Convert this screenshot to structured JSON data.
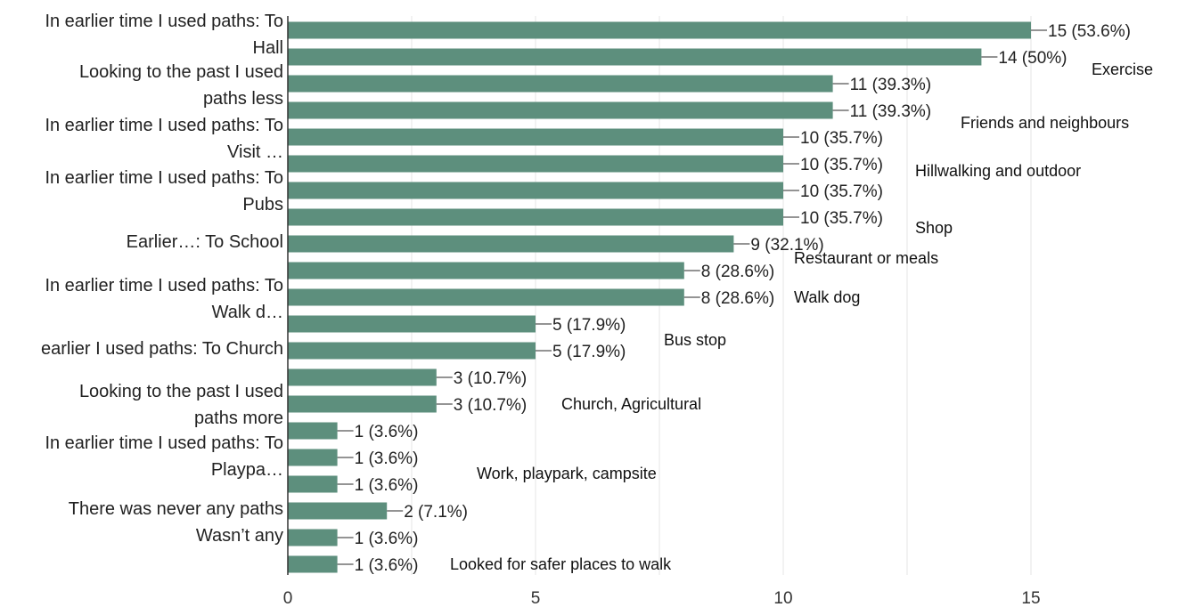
{
  "chart_data": {
    "type": "bar",
    "orientation": "horizontal",
    "bar_color": "#5d8f7d",
    "grid": true,
    "xlim": [
      0,
      15
    ],
    "x_ticks": [
      0,
      5,
      10,
      15
    ],
    "category_labels": [
      [
        "In earlier time I used paths: To",
        "Hall"
      ],
      [
        "Looking to the past I used",
        "paths less"
      ],
      [
        "In earlier time I used paths: To",
        "Visit …"
      ],
      [
        "In earlier time I used paths: To",
        "Pubs"
      ],
      [
        "Earlier…: To School"
      ],
      [
        "In earlier time I used paths: To",
        "Walk d…"
      ],
      [
        "earlier I used paths: To Church"
      ],
      [
        "Looking to the past I used",
        "paths more"
      ],
      [
        "In earlier time I used paths: To",
        "Playpa…"
      ],
      [
        "There was never any paths"
      ],
      [
        "Wasn’t any"
      ]
    ],
    "bars": [
      {
        "value": 15,
        "label": "15 (53.6%)",
        "annotation": ""
      },
      {
        "value": 14,
        "label": "14 (50%)",
        "annotation": "Exercise"
      },
      {
        "value": 11,
        "label": "11 (39.3%)",
        "annotation": ""
      },
      {
        "value": 11,
        "label": "11 (39.3%)",
        "annotation": "Friends and neighbours"
      },
      {
        "value": 10,
        "label": "10 (35.7%)",
        "annotation": ""
      },
      {
        "value": 10,
        "label": "10 (35.7%)",
        "annotation": "Hillwalking and outdoor"
      },
      {
        "value": 10,
        "label": "10 (35.7%)",
        "annotation": ""
      },
      {
        "value": 10,
        "label": "10 (35.7%)",
        "annotation": "Shop"
      },
      {
        "value": 9,
        "label": "9 (32.1%)",
        "annotation": ""
      },
      {
        "value": 8,
        "label": "8 (28.6%)",
        "annotation": "Restaurant or meals"
      },
      {
        "value": 8,
        "label": "8 (28.6%)",
        "annotation": "Walk dog"
      },
      {
        "value": 5,
        "label": "5 (17.9%)",
        "annotation": "Bus stop"
      },
      {
        "value": 5,
        "label": "5 (17.9%)",
        "annotation": ""
      },
      {
        "value": 3,
        "label": "3 (10.7%)",
        "annotation": ""
      },
      {
        "value": 3,
        "label": "3 (10.7%)",
        "annotation": "Church, Agricultural"
      },
      {
        "value": 1,
        "label": "1 (3.6%)",
        "annotation": ""
      },
      {
        "value": 1,
        "label": "1 (3.6%)",
        "annotation": "Work, playpark, campsite"
      },
      {
        "value": 1,
        "label": "1 (3.6%)",
        "annotation": ""
      },
      {
        "value": 2,
        "label": "2 (7.1%)",
        "annotation": ""
      },
      {
        "value": 1,
        "label": "1 (3.6%)",
        "annotation": ""
      },
      {
        "value": 1,
        "label": "1 (3.6%)",
        "annotation": "Looked for safer places to walk"
      }
    ]
  }
}
